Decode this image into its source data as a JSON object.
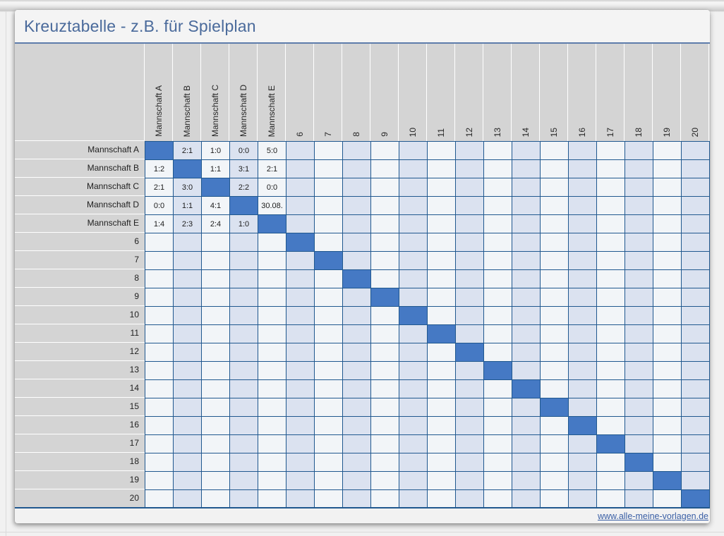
{
  "title_bar": {
    "title": "Kreuztabelle - z.B. für Spielplan"
  },
  "table": {
    "team_labels": [
      "Mannschaft A",
      "Mannschaft B",
      "Mannschaft C",
      "Mannschaft D",
      "Mannschaft E"
    ],
    "number_labels": [
      "6",
      "7",
      "8",
      "9",
      "10",
      "11",
      "12",
      "13",
      "14",
      "15",
      "16",
      "17",
      "18",
      "19",
      "20"
    ],
    "results": [
      [
        "",
        "2:1",
        "1:0",
        "0:0",
        "5:0"
      ],
      [
        "1:2",
        "",
        "1:1",
        "3:1",
        "2:1"
      ],
      [
        "2:1",
        "3:0",
        "",
        "2:2",
        "0:0"
      ],
      [
        "0:0",
        "1:1",
        "4:1",
        "",
        "30.08."
      ],
      [
        "1:4",
        "2:3",
        "2:4",
        "1:0",
        ""
      ]
    ]
  },
  "footer": {
    "link_text": "www.alle-meine-vorlagen.de"
  },
  "colors": {
    "diagonal_fill": "#4579C4",
    "stripe_light": "#DBE2F0",
    "stripe_white": "#F2F5F8",
    "grid_line": "#20588F",
    "header_gray": "#D4D4D4",
    "title_text": "#4A6A9B",
    "link_text": "#3A5FA5"
  }
}
